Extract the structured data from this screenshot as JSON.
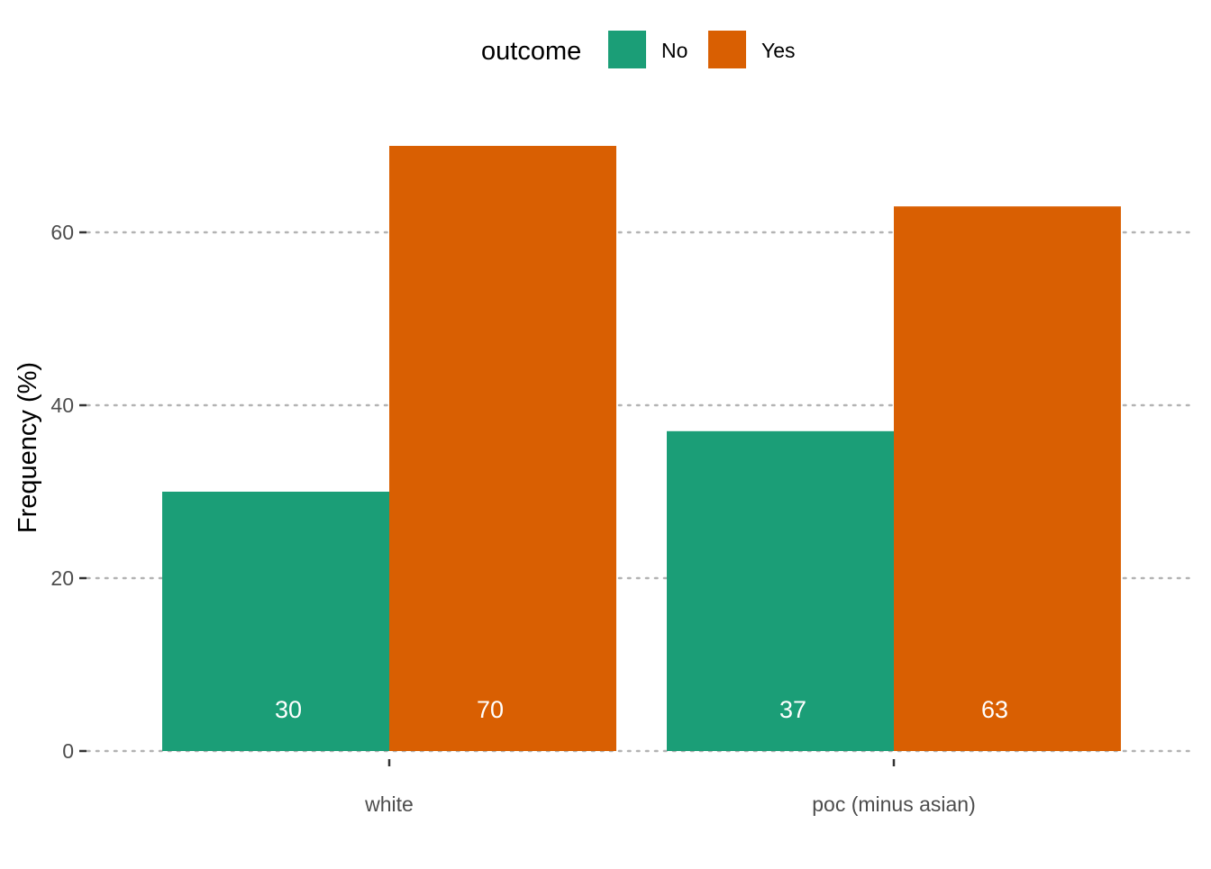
{
  "chart_data": {
    "type": "bar",
    "categories": [
      "white",
      "poc (minus asian)"
    ],
    "series": [
      {
        "name": "No",
        "values": [
          30,
          37
        ],
        "labels": [
          "30",
          "37"
        ],
        "color": "#1b9e77"
      },
      {
        "name": "Yes",
        "values": [
          70,
          63
        ],
        "labels": [
          "70",
          "63"
        ],
        "color": "#d95f02"
      }
    ],
    "ylabel": "Frequency (%)",
    "xlabel": "",
    "ylim": [
      0,
      70
    ],
    "yticks": [
      0,
      20,
      40,
      60
    ],
    "ytick_labels": [
      "0",
      "20",
      "40",
      "60"
    ],
    "legend": {
      "title": "outcome",
      "position": "top"
    },
    "grid": "horizontal dotted"
  }
}
